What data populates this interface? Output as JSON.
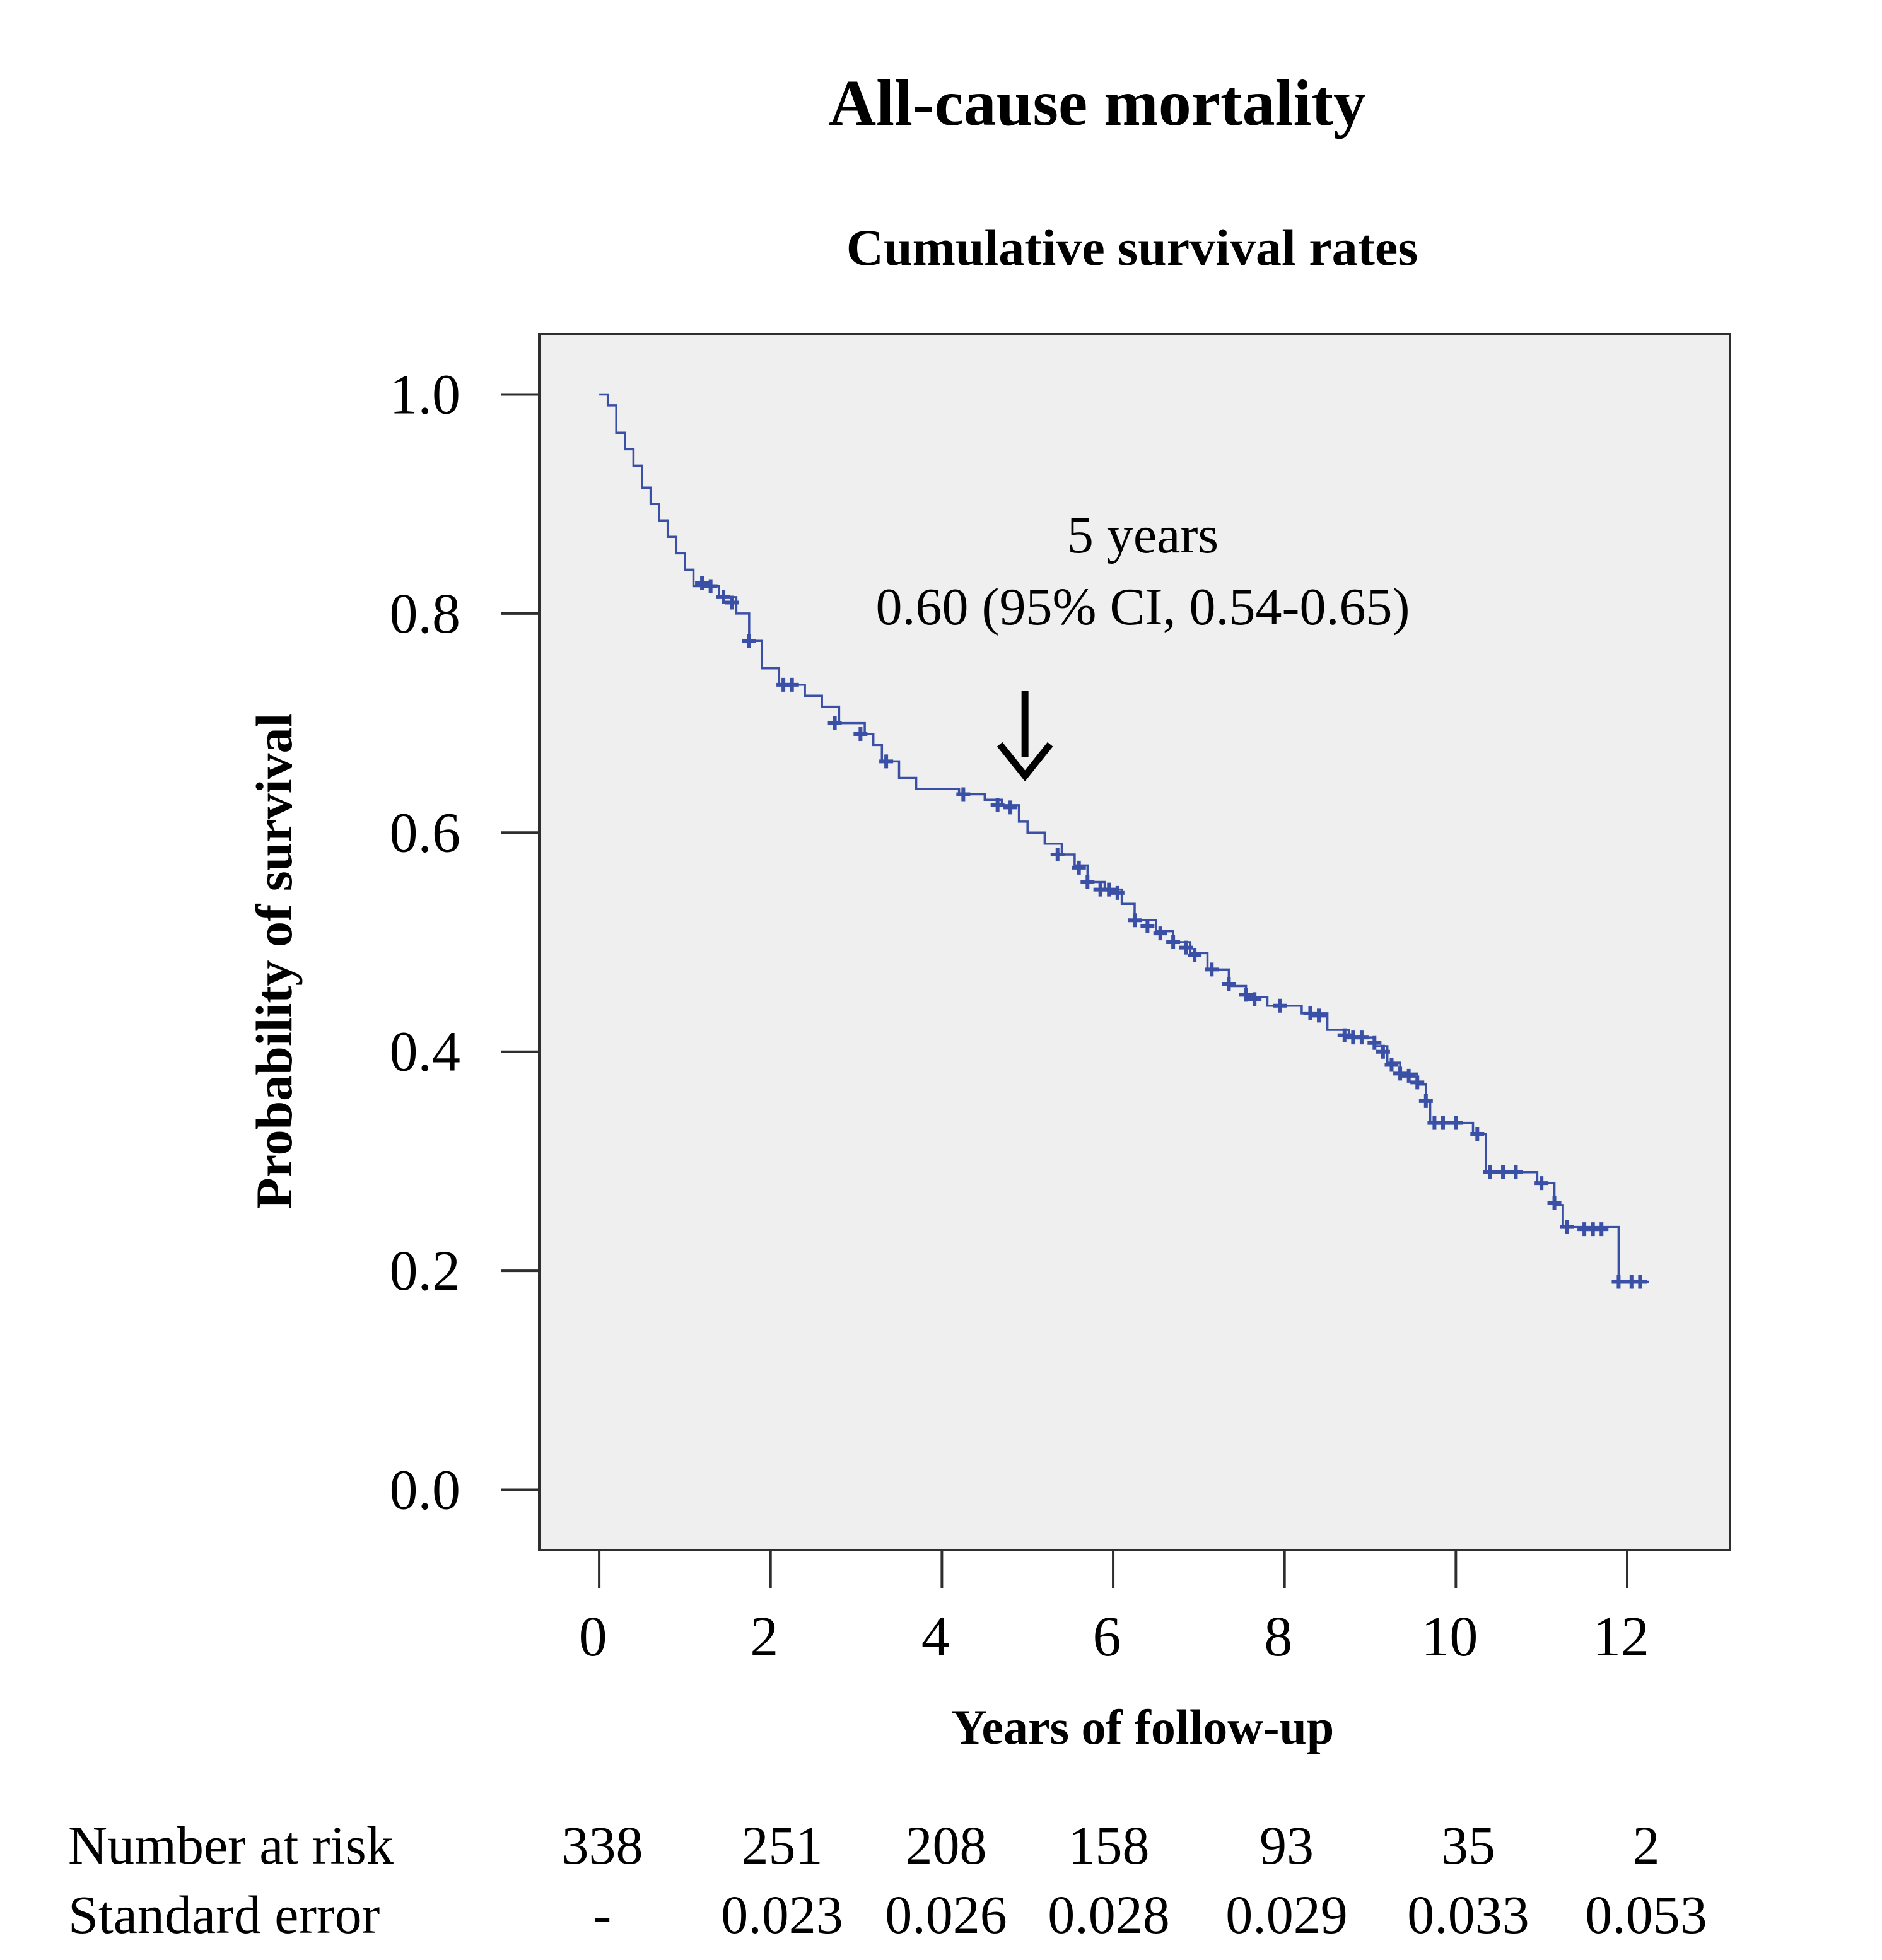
{
  "chart_data": {
    "type": "line",
    "title": "All-cause mortality",
    "subtitle": "Cumulative survival rates",
    "xlabel": "Years of follow-up",
    "ylabel": "Probability of survival",
    "xlim": [
      -0.7,
      13.2
    ],
    "ylim": [
      -0.055,
      1.055
    ],
    "x_ticks": [
      0,
      2,
      4,
      6,
      8,
      10,
      12
    ],
    "y_ticks": [
      0.0,
      0.2,
      0.4,
      0.6,
      0.8,
      1.0
    ],
    "x_tick_labels": [
      "0",
      "2",
      "4",
      "6",
      "8",
      "10",
      "12"
    ],
    "y_tick_labels": [
      "0.0",
      "0.2",
      "0.4",
      "0.6",
      "0.8",
      "1.0"
    ],
    "grid": false,
    "plot_background": "#efefef",
    "line_color": "#3a4fa6",
    "series": [
      {
        "name": "",
        "steps": [
          [
            0.0,
            1.0
          ],
          [
            0.1,
            0.99
          ],
          [
            0.2,
            0.965
          ],
          [
            0.3,
            0.95
          ],
          [
            0.4,
            0.935
          ],
          [
            0.5,
            0.915
          ],
          [
            0.6,
            0.9
          ],
          [
            0.7,
            0.885
          ],
          [
            0.8,
            0.87
          ],
          [
            0.9,
            0.855
          ],
          [
            1.0,
            0.84
          ],
          [
            1.1,
            0.825
          ],
          [
            1.4,
            0.815
          ],
          [
            1.6,
            0.8
          ],
          [
            1.75,
            0.775
          ],
          [
            1.9,
            0.75
          ],
          [
            2.1,
            0.735
          ],
          [
            2.4,
            0.725
          ],
          [
            2.6,
            0.715
          ],
          [
            2.8,
            0.7
          ],
          [
            3.1,
            0.69
          ],
          [
            3.2,
            0.68
          ],
          [
            3.3,
            0.665
          ],
          [
            3.5,
            0.65
          ],
          [
            3.7,
            0.64
          ],
          [
            4.2,
            0.635
          ],
          [
            4.5,
            0.63
          ],
          [
            4.7,
            0.625
          ],
          [
            4.9,
            0.61
          ],
          [
            5.0,
            0.6
          ],
          [
            5.2,
            0.59
          ],
          [
            5.4,
            0.58
          ],
          [
            5.55,
            0.57
          ],
          [
            5.7,
            0.555
          ],
          [
            5.9,
            0.548
          ],
          [
            6.1,
            0.535
          ],
          [
            6.25,
            0.52
          ],
          [
            6.5,
            0.51
          ],
          [
            6.7,
            0.5
          ],
          [
            6.9,
            0.49
          ],
          [
            7.1,
            0.475
          ],
          [
            7.35,
            0.46
          ],
          [
            7.55,
            0.45
          ],
          [
            7.8,
            0.442
          ],
          [
            8.2,
            0.435
          ],
          [
            8.5,
            0.42
          ],
          [
            8.75,
            0.413
          ],
          [
            9.05,
            0.405
          ],
          [
            9.2,
            0.39
          ],
          [
            9.35,
            0.38
          ],
          [
            9.55,
            0.37
          ],
          [
            9.65,
            0.355
          ],
          [
            9.7,
            0.335
          ],
          [
            10.2,
            0.325
          ],
          [
            10.35,
            0.29
          ],
          [
            10.95,
            0.28
          ],
          [
            11.15,
            0.26
          ],
          [
            11.25,
            0.24
          ],
          [
            11.9,
            0.19
          ],
          [
            12.25,
            0.19
          ]
        ],
        "censored": [
          [
            1.2,
            0.828
          ],
          [
            1.3,
            0.825
          ],
          [
            1.45,
            0.815
          ],
          [
            1.55,
            0.81
          ],
          [
            1.75,
            0.775
          ],
          [
            2.15,
            0.735
          ],
          [
            2.25,
            0.735
          ],
          [
            2.75,
            0.7
          ],
          [
            3.05,
            0.69
          ],
          [
            3.35,
            0.665
          ],
          [
            4.25,
            0.635
          ],
          [
            4.65,
            0.625
          ],
          [
            4.8,
            0.623
          ],
          [
            5.35,
            0.58
          ],
          [
            5.6,
            0.568
          ],
          [
            5.7,
            0.555
          ],
          [
            5.85,
            0.548
          ],
          [
            5.95,
            0.548
          ],
          [
            6.05,
            0.545
          ],
          [
            6.25,
            0.52
          ],
          [
            6.4,
            0.515
          ],
          [
            6.55,
            0.508
          ],
          [
            6.7,
            0.5
          ],
          [
            6.85,
            0.495
          ],
          [
            6.95,
            0.488
          ],
          [
            7.15,
            0.475
          ],
          [
            7.35,
            0.462
          ],
          [
            7.55,
            0.452
          ],
          [
            7.65,
            0.448
          ],
          [
            7.95,
            0.442
          ],
          [
            8.3,
            0.435
          ],
          [
            8.4,
            0.433
          ],
          [
            8.7,
            0.415
          ],
          [
            8.8,
            0.413
          ],
          [
            8.9,
            0.413
          ],
          [
            9.05,
            0.408
          ],
          [
            9.15,
            0.4
          ],
          [
            9.25,
            0.388
          ],
          [
            9.35,
            0.38
          ],
          [
            9.45,
            0.378
          ],
          [
            9.55,
            0.372
          ],
          [
            9.65,
            0.355
          ],
          [
            9.75,
            0.335
          ],
          [
            9.85,
            0.335
          ],
          [
            10.0,
            0.335
          ],
          [
            10.25,
            0.325
          ],
          [
            10.4,
            0.29
          ],
          [
            10.55,
            0.29
          ],
          [
            10.7,
            0.29
          ],
          [
            11.0,
            0.28
          ],
          [
            11.15,
            0.262
          ],
          [
            11.3,
            0.24
          ],
          [
            11.5,
            0.238
          ],
          [
            11.6,
            0.238
          ],
          [
            11.7,
            0.238
          ],
          [
            11.9,
            0.19
          ],
          [
            12.05,
            0.19
          ],
          [
            12.15,
            0.19
          ]
        ]
      }
    ],
    "annotation": {
      "line1": "5 years",
      "line2": "0.60 (95% CI, 0.54-0.65)",
      "arrow_x": 4.97,
      "arrow_y": 0.6
    },
    "risk_table": {
      "times": [
        0,
        2,
        4,
        6,
        8,
        10,
        12
      ],
      "rows": [
        {
          "label": "Number at risk",
          "values": [
            "338",
            "251",
            "208",
            "158",
            "93",
            "35",
            "2"
          ]
        },
        {
          "label": "Standard error",
          "values": [
            "-",
            "0.023",
            "0.026",
            "0.028",
            "0.029",
            "0.033",
            "0.053"
          ]
        }
      ]
    }
  }
}
